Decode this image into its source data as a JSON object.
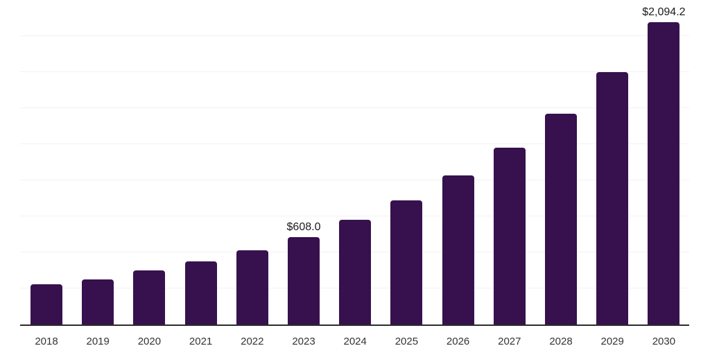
{
  "chart_data": {
    "type": "bar",
    "title": "",
    "xlabel": "",
    "ylabel": "",
    "categories": [
      "2018",
      "2019",
      "2020",
      "2021",
      "2022",
      "2023",
      "2024",
      "2025",
      "2026",
      "2027",
      "2028",
      "2029",
      "2030"
    ],
    "values": [
      278,
      312,
      374,
      436,
      513,
      608.0,
      725,
      861,
      1033,
      1227,
      1462,
      1751,
      2094.2
    ],
    "data_labels": [
      null,
      null,
      null,
      null,
      null,
      "$608.0",
      null,
      null,
      null,
      null,
      null,
      null,
      "$2,094.2"
    ],
    "ylim": [
      0,
      2250
    ],
    "gridline_step": 250,
    "grid": "horizontal-only",
    "legend": "none",
    "y_axis_tick_labels_visible": false
  },
  "colors": {
    "bar_fill": "#36114E",
    "axis_line": "#2B2B2B",
    "gridline": "#F2F2F2",
    "data_label_text": "#1A1A1A",
    "x_tick_text": "#333333",
    "background": "#FFFFFF"
  }
}
